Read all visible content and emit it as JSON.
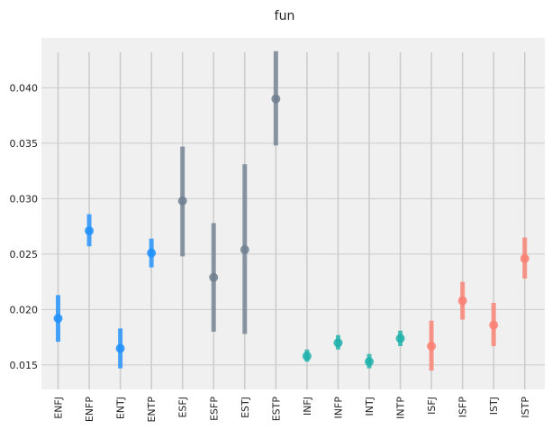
{
  "chart_data": {
    "type": "scatter",
    "title": "fun",
    "xlabel": "",
    "ylabel": "",
    "categories": [
      "ENFJ",
      "ENFP",
      "ENTJ",
      "ENTP",
      "ESFJ",
      "ESFP",
      "ESTJ",
      "ESTP",
      "INFJ",
      "INFP",
      "INTJ",
      "INTP",
      "ISFJ",
      "ISFP",
      "ISTJ",
      "ISTP"
    ],
    "y_ticks": [
      "0.015",
      "0.020",
      "0.025",
      "0.030",
      "0.035",
      "0.040"
    ],
    "ylim": [
      0.0128,
      0.0445
    ],
    "grid": true,
    "points": [
      {
        "category": "ENFJ",
        "value": 0.0192,
        "low": 0.0171,
        "high": 0.0213,
        "color": "#1e90ff"
      },
      {
        "category": "ENFP",
        "value": 0.0271,
        "low": 0.0257,
        "high": 0.0286,
        "color": "#1e90ff"
      },
      {
        "category": "ENTJ",
        "value": 0.0165,
        "low": 0.0147,
        "high": 0.0183,
        "color": "#1e90ff"
      },
      {
        "category": "ENTP",
        "value": 0.0251,
        "low": 0.0238,
        "high": 0.0264,
        "color": "#1e90ff"
      },
      {
        "category": "ESFJ",
        "value": 0.0298,
        "low": 0.0248,
        "high": 0.0347,
        "color": "#708090"
      },
      {
        "category": "ESFP",
        "value": 0.0229,
        "low": 0.018,
        "high": 0.0278,
        "color": "#708090"
      },
      {
        "category": "ESTJ",
        "value": 0.0254,
        "low": 0.0178,
        "high": 0.0331,
        "color": "#708090"
      },
      {
        "category": "ESTP",
        "value": 0.039,
        "low": 0.0348,
        "high": 0.0433,
        "color": "#708090"
      },
      {
        "category": "INFJ",
        "value": 0.0158,
        "low": 0.0153,
        "high": 0.0164,
        "color": "#20b2aa"
      },
      {
        "category": "INFP",
        "value": 0.017,
        "low": 0.0164,
        "high": 0.0177,
        "color": "#20b2aa"
      },
      {
        "category": "INTJ",
        "value": 0.0153,
        "low": 0.0147,
        "high": 0.016,
        "color": "#20b2aa"
      },
      {
        "category": "INTP",
        "value": 0.0174,
        "low": 0.0167,
        "high": 0.0181,
        "color": "#20b2aa"
      },
      {
        "category": "ISFJ",
        "value": 0.0167,
        "low": 0.0145,
        "high": 0.019,
        "color": "#fa8072"
      },
      {
        "category": "ISFP",
        "value": 0.0208,
        "low": 0.0191,
        "high": 0.0225,
        "color": "#fa8072"
      },
      {
        "category": "ISTJ",
        "value": 0.0186,
        "low": 0.0167,
        "high": 0.0206,
        "color": "#fa8072"
      },
      {
        "category": "ISTP",
        "value": 0.0246,
        "low": 0.0228,
        "high": 0.0265,
        "color": "#fa8072"
      }
    ]
  }
}
